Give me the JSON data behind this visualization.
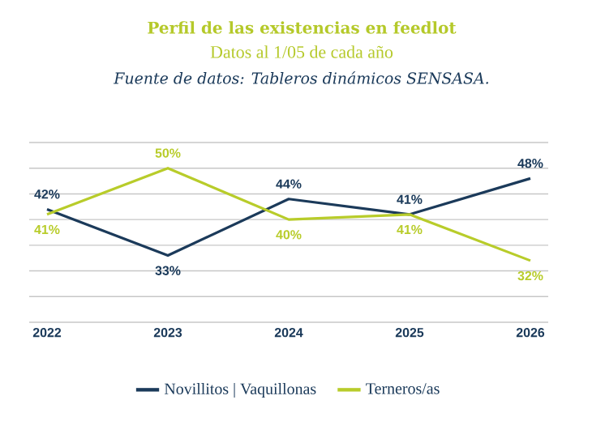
{
  "chart_data": {
    "type": "line",
    "title": "Perfil de las existencias en feedlot",
    "subtitle": "Datos al 1/05 de cada año",
    "annotations": [
      "Fuente de datos: Tableros dinámicos SENSASA."
    ],
    "categories": [
      "2022",
      "2023",
      "2024",
      "2025",
      "2026"
    ],
    "series": [
      {
        "name": "Novillitos | Vaquillonas",
        "color": "#1b3a5a",
        "values": [
          42,
          33,
          44,
          41,
          48
        ],
        "value_labels": [
          "42%",
          "33%",
          "44%",
          "41%",
          "48%"
        ]
      },
      {
        "name": "Terneros/as",
        "color": "#b8cc2a",
        "values": [
          41,
          50,
          40,
          41,
          32
        ],
        "value_labels": [
          "41%",
          "50%",
          "40%",
          "41%",
          "32%"
        ]
      }
    ],
    "ylim": [
      20,
      55
    ],
    "yticks": [
      {
        "value": 20,
        "label": null
      },
      {
        "value": 25,
        "label": null
      },
      {
        "value": 30,
        "label": null
      },
      {
        "value": 35,
        "label": null
      },
      {
        "value": 40,
        "label": null
      },
      {
        "value": 45,
        "label": null
      },
      {
        "value": 50,
        "label": null
      },
      {
        "value": 55,
        "label": null
      }
    ],
    "tick_labels": "x",
    "grid": "y",
    "legend": "bottom"
  }
}
